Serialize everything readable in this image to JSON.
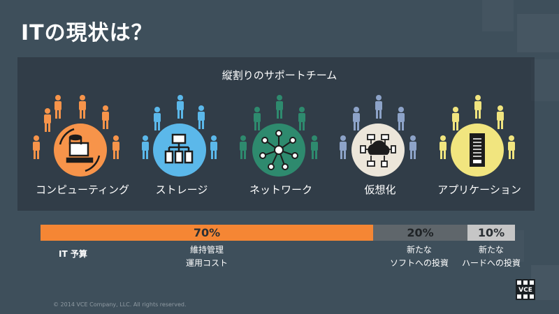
{
  "slide": {
    "title": "ITの現状は？",
    "panel_title": "縦割りのサポートチーム",
    "groups": [
      {
        "label": "コンピューティング",
        "color": "#f7944a",
        "icon": "computer-icon"
      },
      {
        "label": "ストレージ",
        "color": "#5bb8ea",
        "icon": "storage-icon"
      },
      {
        "label": "ネットワーク",
        "color": "#2e8a6e",
        "icon": "network-icon"
      },
      {
        "label": "仮想化",
        "color": "#8da3c8",
        "icon": "cloud-devices-icon"
      },
      {
        "label": "アプリケーション",
        "color": "#f1e57f",
        "icon": "server-rack-icon"
      }
    ],
    "budget": {
      "label": "IT 予算",
      "segments": [
        {
          "value": "70%",
          "line1": "維持管理",
          "line2": "運用コスト",
          "share": 70,
          "color": "#f58634"
        },
        {
          "value": "20%",
          "line1": "新たな",
          "line2": "ソフトへの投資",
          "share": 20,
          "color": "#5f666b"
        },
        {
          "value": "10%",
          "line1": "新たな",
          "line2": "ハードへの投資",
          "share": 10,
          "color": "#c6c6c6"
        }
      ]
    },
    "logo_text": "VCE",
    "copyright": "© 2014 VCE Company, LLC. All rights reserved."
  }
}
